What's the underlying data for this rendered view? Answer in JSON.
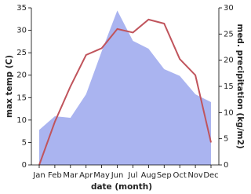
{
  "chart_data": {
    "type": "line",
    "x_label": "date (month)",
    "y_label": "max temp (C)",
    "y2_label": "med. precipitation (kg/m2)",
    "categories": [
      "Jan",
      "Feb",
      "Mar",
      "Apr",
      "May",
      "Jun",
      "Jul",
      "Aug",
      "Sep",
      "Oct",
      "Nov",
      "Dec"
    ],
    "series": [
      {
        "name": "med. precipitation",
        "type": "area",
        "axis": "y2",
        "color": "#aab4f0",
        "values": [
          6.7,
          9.3,
          9,
          13.5,
          21.7,
          29.5,
          23.7,
          22.2,
          18.3,
          17,
          13.5,
          12
        ]
      },
      {
        "name": "max temp",
        "type": "line",
        "axis": "y",
        "color": "#c0545c",
        "values": [
          0,
          9.6,
          17.5,
          24.5,
          26,
          30.3,
          29.5,
          32.4,
          31.5,
          23.6,
          20,
          5
        ]
      }
    ],
    "ylim": [
      0,
      35
    ],
    "yticks": [
      0,
      5,
      10,
      15,
      20,
      25,
      30,
      35
    ],
    "y2lim": [
      0,
      30
    ],
    "y2ticks": [
      0,
      5,
      10,
      15,
      20,
      25,
      30
    ]
  }
}
